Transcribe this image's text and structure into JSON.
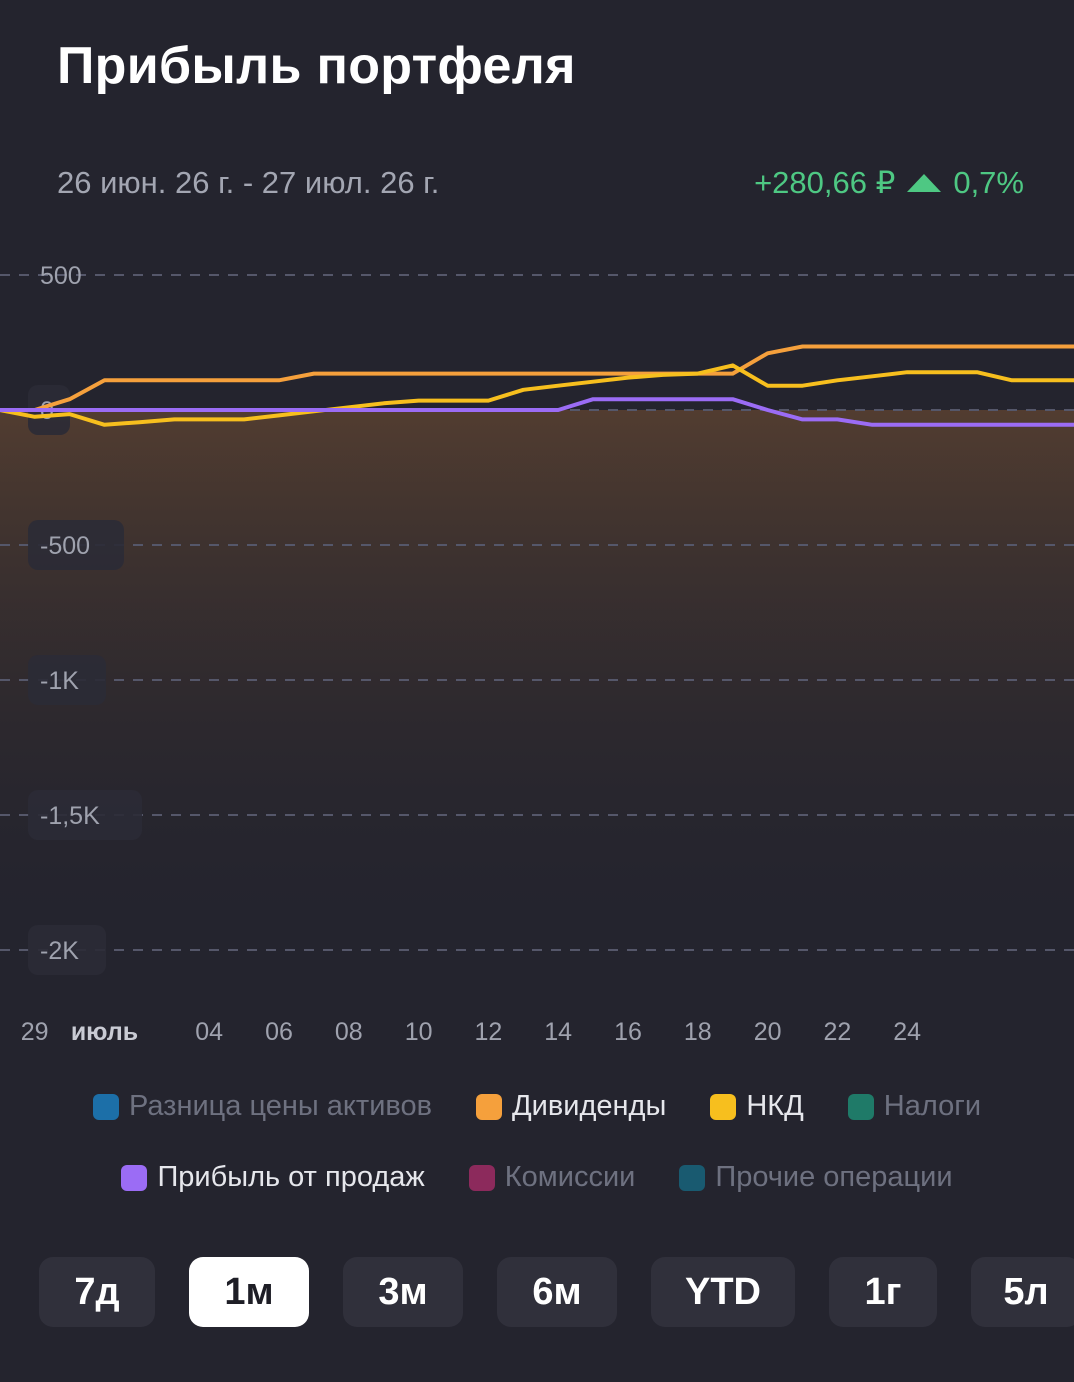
{
  "header": {
    "title": "Прибыль портфеля",
    "period": "26 июн. 26 г. - 27 июл. 26 г.",
    "change_abs": "+280,66 ₽",
    "change_pct": "0,7%",
    "change_color": "#4ec883"
  },
  "chart_data": {
    "type": "line",
    "x": [
      "2026-06-26",
      "2026-06-27",
      "2026-06-28",
      "2026-06-29",
      "2026-06-30",
      "2026-07-01",
      "2026-07-02",
      "2026-07-03",
      "2026-07-04",
      "2026-07-05",
      "2026-07-06",
      "2026-07-07",
      "2026-07-08",
      "2026-07-09",
      "2026-07-10",
      "2026-07-11",
      "2026-07-12",
      "2026-07-13",
      "2026-07-14",
      "2026-07-15",
      "2026-07-16",
      "2026-07-17",
      "2026-07-18",
      "2026-07-19",
      "2026-07-20",
      "2026-07-21",
      "2026-07-22",
      "2026-07-23",
      "2026-07-24",
      "2026-07-25",
      "2026-07-26",
      "2026-07-27"
    ],
    "x_tick_labels": [
      "29",
      "июль",
      "04",
      "06",
      "08",
      "10",
      "12",
      "14",
      "16",
      "18",
      "20",
      "22",
      "24"
    ],
    "y_tick_labels": [
      "500",
      "0",
      "-500",
      "-1K",
      "-1,5K",
      "-2K"
    ],
    "ylim": [
      -2000,
      500
    ],
    "grid": true,
    "series": [
      {
        "name": "Дивиденды",
        "color": "#f5a03c",
        "values": [
          0,
          0,
          0,
          0,
          40,
          110,
          110,
          110,
          110,
          110,
          110,
          135,
          135,
          135,
          135,
          135,
          135,
          135,
          135,
          135,
          135,
          135,
          135,
          135,
          210,
          235,
          235,
          235,
          235,
          235,
          235,
          235
        ]
      },
      {
        "name": "НКД",
        "color": "#f7bf1e",
        "values": [
          0,
          0,
          0,
          -25,
          -15,
          -55,
          -45,
          -35,
          -35,
          -35,
          -20,
          -5,
          10,
          25,
          35,
          35,
          35,
          75,
          90,
          105,
          120,
          130,
          135,
          165,
          90,
          90,
          110,
          125,
          140,
          140,
          140,
          110
        ]
      },
      {
        "name": "Прибыль от продаж",
        "color": "#9b6cf5",
        "values": [
          0,
          0,
          0,
          0,
          0,
          0,
          0,
          0,
          0,
          0,
          0,
          0,
          0,
          0,
          0,
          0,
          0,
          0,
          0,
          40,
          40,
          40,
          40,
          40,
          0,
          -35,
          -35,
          -55,
          -55,
          -55,
          -55,
          -55
        ]
      }
    ]
  },
  "legend": [
    {
      "label": "Разница цены активов",
      "color": "#1c6fa8",
      "active": false
    },
    {
      "label": "Дивиденды",
      "color": "#f5a03c",
      "active": true
    },
    {
      "label": "НКД",
      "color": "#f7bf1e",
      "active": true
    },
    {
      "label": "Налоги",
      "color": "#1f7a68",
      "active": false
    },
    {
      "label": "Прибыль от продаж",
      "color": "#9b6cf5",
      "active": true
    },
    {
      "label": "Комиссии",
      "color": "#8c2a5c",
      "active": false
    },
    {
      "label": "Прочие операции",
      "color": "#195a70",
      "active": false
    }
  ],
  "periods": [
    {
      "label": "7д",
      "active": false
    },
    {
      "label": "1м",
      "active": true
    },
    {
      "label": "3м",
      "active": false
    },
    {
      "label": "6м",
      "active": false
    },
    {
      "label": "YTD",
      "active": false
    },
    {
      "label": "1г",
      "active": false
    },
    {
      "label": "5л",
      "active": false
    }
  ]
}
